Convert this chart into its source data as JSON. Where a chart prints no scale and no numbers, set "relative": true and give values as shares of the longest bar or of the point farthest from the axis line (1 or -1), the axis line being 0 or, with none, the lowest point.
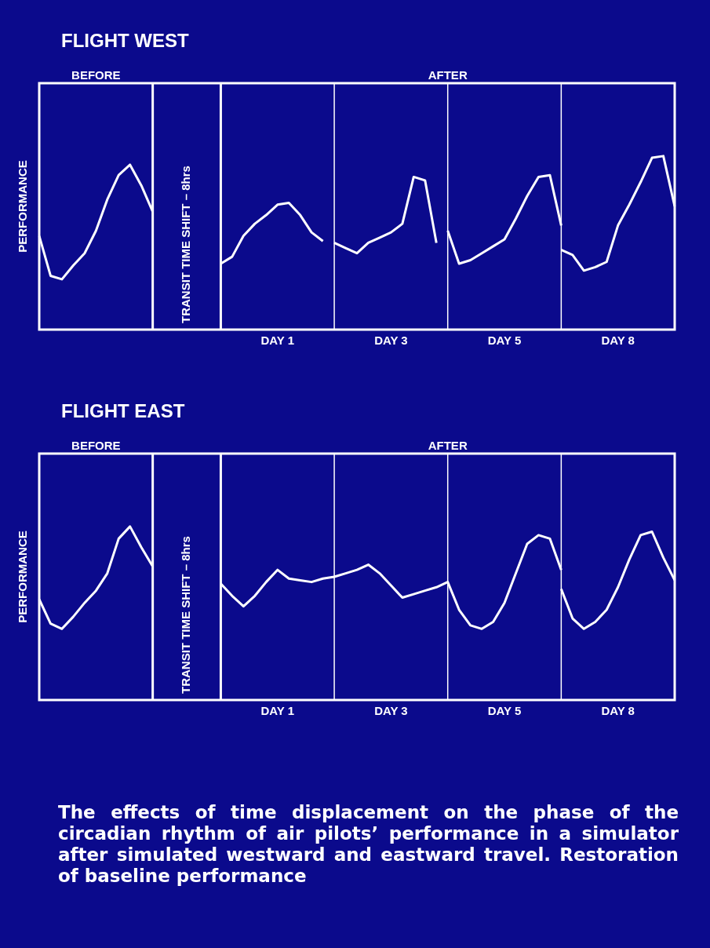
{
  "chart_data": [
    {
      "type": "line",
      "title": "FLIGHT WEST",
      "ylabel": "PERFORMANCE",
      "relative": true,
      "grid": "x",
      "legend": false,
      "marker": "none",
      "categories": [
        null,
        null,
        null,
        null,
        null,
        null,
        null,
        null,
        null,
        null,
        null,
        null,
        null,
        null,
        null,
        null,
        null,
        null,
        null,
        null,
        null,
        "DAY 1",
        null,
        null,
        null,
        null,
        null,
        null,
        null,
        null,
        null,
        "DAY 3",
        null,
        null,
        null,
        null,
        null,
        null,
        null,
        null,
        null,
        "DAY 5",
        null,
        null,
        null,
        null,
        null,
        null,
        null,
        null,
        null,
        "DAY 8",
        null,
        null,
        null,
        null,
        null
      ],
      "annotations": [
        "BEFORE",
        "AFTER",
        "TRANSIT TIME SHIFT – 8hrs"
      ],
      "series": [
        {
          "color": "#ffffff",
          "values": [
            0.54,
            0.31,
            0.29,
            0.37,
            0.44,
            0.57,
            0.75,
            0.89,
            0.95,
            0.83,
            0.68,
            null,
            null,
            null,
            null,
            null,
            null,
            null,
            null,
            null,
            null,
            null,
            null,
            null,
            null,
            null,
            null,
            null,
            null,
            null,
            null,
            null,
            null,
            null,
            null,
            null,
            null,
            null,
            null,
            null,
            null,
            null,
            null,
            null,
            null,
            null,
            null,
            null,
            null,
            null,
            null,
            null,
            null,
            null,
            null,
            null,
            null
          ]
        },
        {
          "color": "#ffffff",
          "values": [
            null,
            null,
            null,
            null,
            null,
            null,
            null,
            null,
            null,
            null,
            null,
            null,
            null,
            null,
            null,
            null,
            0.38,
            0.42,
            0.54,
            0.61,
            0.66,
            0.72,
            0.73,
            0.66,
            0.56,
            0.51,
            null,
            null,
            null,
            null,
            null,
            null,
            null,
            null,
            null,
            null,
            null,
            null,
            null,
            null,
            null,
            null,
            null,
            null,
            null,
            null,
            null,
            null,
            null,
            null,
            null,
            null,
            null,
            null,
            null,
            null,
            null
          ]
        },
        {
          "color": "#ffffff",
          "values": [
            null,
            null,
            null,
            null,
            null,
            null,
            null,
            null,
            null,
            null,
            null,
            null,
            null,
            null,
            null,
            null,
            null,
            null,
            null,
            null,
            null,
            null,
            null,
            null,
            null,
            null,
            0.5,
            0.47,
            0.44,
            0.5,
            0.53,
            0.56,
            0.61,
            0.88,
            0.86,
            0.5,
            null,
            null,
            null,
            null,
            null,
            null,
            null,
            null,
            null,
            null,
            null,
            null,
            null,
            null,
            null,
            null,
            null,
            null,
            null,
            null,
            null
          ]
        },
        {
          "color": "#ffffff",
          "values": [
            null,
            null,
            null,
            null,
            null,
            null,
            null,
            null,
            null,
            null,
            null,
            null,
            null,
            null,
            null,
            null,
            null,
            null,
            null,
            null,
            null,
            null,
            null,
            null,
            null,
            null,
            null,
            null,
            null,
            null,
            null,
            null,
            null,
            null,
            null,
            null,
            0.57,
            0.38,
            0.4,
            0.44,
            0.48,
            0.52,
            0.64,
            0.77,
            0.88,
            0.89,
            0.6,
            null,
            null,
            null,
            null,
            null,
            null,
            null,
            null,
            null,
            null
          ]
        },
        {
          "color": "#ffffff",
          "values": [
            null,
            null,
            null,
            null,
            null,
            null,
            null,
            null,
            null,
            null,
            null,
            null,
            null,
            null,
            null,
            null,
            null,
            null,
            null,
            null,
            null,
            null,
            null,
            null,
            null,
            null,
            null,
            null,
            null,
            null,
            null,
            null,
            null,
            null,
            null,
            null,
            null,
            null,
            null,
            null,
            null,
            null,
            null,
            null,
            null,
            null,
            0.46,
            0.43,
            0.34,
            0.36,
            0.39,
            0.6,
            0.72,
            0.85,
            0.99,
            1.0,
            0.71
          ]
        }
      ]
    },
    {
      "type": "line",
      "title": "FLIGHT EAST",
      "ylabel": "PERFORMANCE",
      "relative": true,
      "grid": "x",
      "legend": false,
      "marker": "none",
      "categories": [
        null,
        null,
        null,
        null,
        null,
        null,
        null,
        null,
        null,
        null,
        null,
        null,
        null,
        null,
        null,
        null,
        null,
        null,
        null,
        null,
        null,
        "DAY 1",
        null,
        null,
        null,
        null,
        null,
        null,
        null,
        null,
        null,
        "DAY 3",
        null,
        null,
        null,
        null,
        null,
        null,
        null,
        null,
        null,
        "DAY 5",
        null,
        null,
        null,
        null,
        null,
        null,
        null,
        null,
        null,
        "DAY 8",
        null,
        null,
        null,
        null,
        null
      ],
      "annotations": [
        "BEFORE",
        "AFTER",
        "TRANSIT TIME SHIFT – 8hrs",
        "The effects of time displacement on the phase of the circadian rhythm of air pilots’ performance in a simulator after simulated westward and eastward travel.  Restoration of baseline performance"
      ],
      "series": [
        {
          "color": "#ffffff",
          "values": [
            0.58,
            0.44,
            0.41,
            0.48,
            0.56,
            0.63,
            0.73,
            0.93,
            1.0,
            0.88,
            0.77,
            null,
            null,
            null,
            null,
            null,
            null,
            null,
            null,
            null,
            null,
            null,
            null,
            null,
            null,
            null,
            null,
            null,
            null,
            null,
            null,
            null,
            null,
            null,
            null,
            null,
            null,
            null,
            null,
            null,
            null,
            null,
            null,
            null,
            null,
            null,
            null,
            null,
            null,
            null,
            null,
            null,
            null,
            null,
            null,
            null,
            null
          ]
        },
        {
          "color": "#ffffff",
          "values": [
            null,
            null,
            null,
            null,
            null,
            null,
            null,
            null,
            null,
            null,
            null,
            null,
            null,
            null,
            null,
            null,
            0.67,
            0.6,
            0.54,
            0.6,
            0.68,
            0.75,
            0.7,
            0.69,
            0.68,
            0.7,
            0.71,
            0.73,
            0.75,
            0.78,
            0.73,
            0.66,
            0.59,
            0.61,
            0.63,
            0.65,
            0.68,
            0.52,
            0.43,
            0.41,
            0.45,
            0.56,
            0.73,
            0.9,
            0.95,
            0.93,
            0.75,
            null,
            null,
            null,
            null,
            null,
            null,
            null,
            null,
            null,
            null
          ]
        },
        {
          "color": "#ffffff",
          "values": [
            null,
            null,
            null,
            null,
            null,
            null,
            null,
            null,
            null,
            null,
            null,
            null,
            null,
            null,
            null,
            null,
            null,
            null,
            null,
            null,
            null,
            null,
            null,
            null,
            null,
            null,
            null,
            null,
            null,
            null,
            null,
            null,
            null,
            null,
            null,
            null,
            null,
            null,
            null,
            null,
            null,
            null,
            null,
            null,
            null,
            null,
            0.64,
            0.47,
            0.41,
            0.45,
            0.52,
            0.65,
            0.81,
            0.95,
            0.97,
            0.82,
            0.69
          ]
        }
      ]
    }
  ]
}
